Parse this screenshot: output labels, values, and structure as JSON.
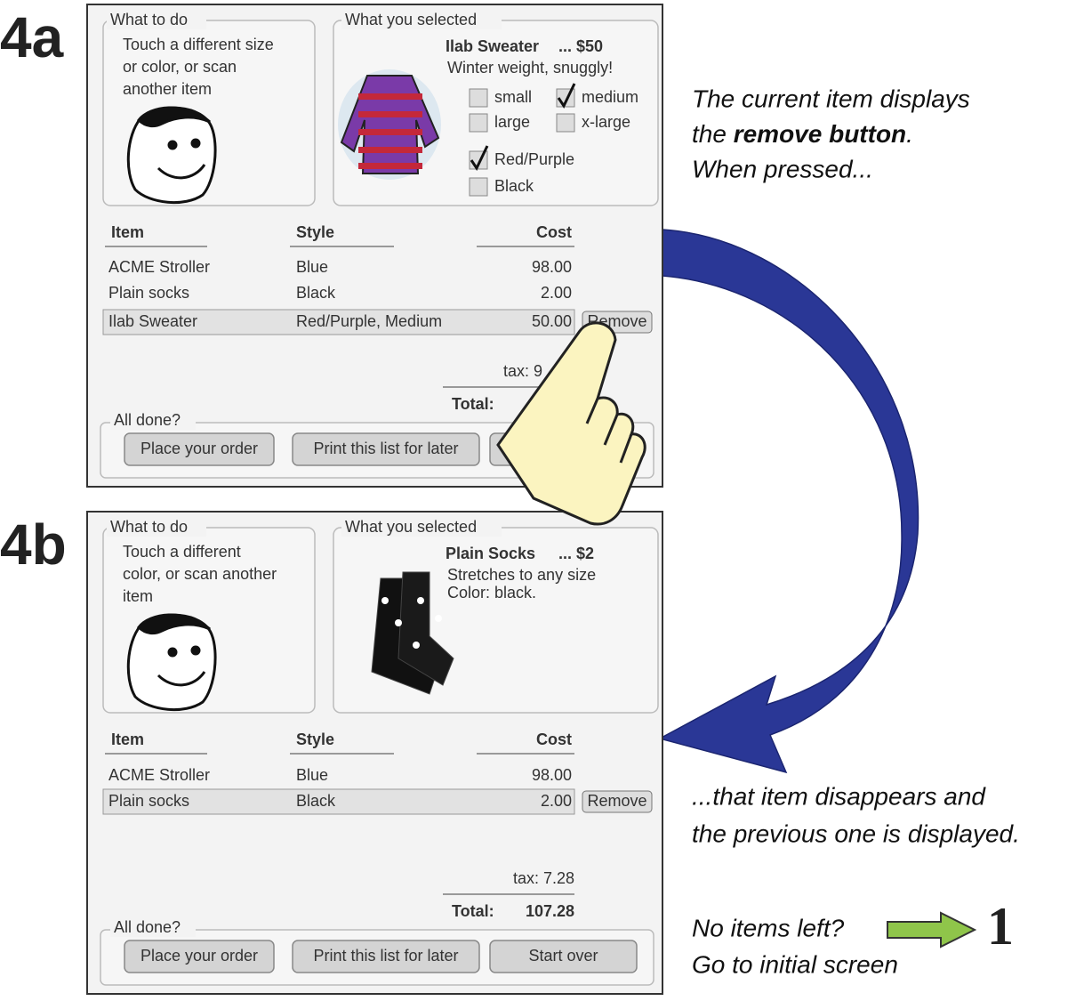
{
  "screens": [
    {
      "label": "4a",
      "what_to_do": {
        "title": "What to do",
        "text": [
          "Touch a different size",
          "or color, or scan",
          "another item"
        ]
      },
      "selected": {
        "title": "What you selected",
        "name": "Ilab Sweater",
        "price": "... $50",
        "description": [
          "Winter weight, snuggly!"
        ],
        "options": [
          {
            "label": "small",
            "checked": false
          },
          {
            "label": "medium",
            "checked": true
          },
          {
            "label": "large",
            "checked": false
          },
          {
            "label": "x-large",
            "checked": false
          },
          {
            "label": "Red/Purple",
            "checked": true
          },
          {
            "label": "Black",
            "checked": false
          }
        ]
      },
      "table": {
        "headers": [
          "Item",
          "Style",
          "Cost"
        ],
        "rows": [
          [
            "ACME Stroller",
            "Blue",
            "98.00"
          ],
          [
            "Plain socks",
            "Black",
            "2.00"
          ],
          [
            "Ilab Sweater",
            "Red/Purple, Medium",
            "50.00"
          ]
        ],
        "remove_button": "Remove",
        "tax": "tax: 9",
        "total_label": "Total:"
      },
      "all_done": {
        "title": "All done?",
        "buttons": [
          "Place your order",
          "Print this list for later"
        ]
      }
    },
    {
      "label": "4b",
      "what_to_do": {
        "title": "What to do",
        "text": [
          "Touch a different",
          "color, or scan another",
          "item"
        ]
      },
      "selected": {
        "title": "What you selected",
        "name": "Plain Socks",
        "price": "... $2",
        "description": [
          "Stretches to any size",
          "Color: black."
        ],
        "options": []
      },
      "table": {
        "headers": [
          "Item",
          "Style",
          "Cost"
        ],
        "rows": [
          [
            "ACME Stroller",
            "Blue",
            "98.00"
          ],
          [
            "Plain socks",
            "Black",
            "2.00"
          ]
        ],
        "remove_button": "Remove",
        "tax": "tax: 7.28",
        "total_label": "Total:",
        "total_value": "107.28"
      },
      "all_done": {
        "title": "All done?",
        "buttons": [
          "Place your order",
          "Print this list for later",
          "Start over"
        ]
      }
    }
  ],
  "annotations": {
    "top": {
      "line1": "The current item displays",
      "line2": [
        "the ",
        "remove button",
        "."
      ],
      "line3": "When pressed..."
    },
    "bottom": [
      "...that item disappears and",
      "the previous one is displayed."
    ],
    "end": {
      "lines": [
        "No items left?",
        "Go to initial screen"
      ],
      "target": "1"
    }
  }
}
